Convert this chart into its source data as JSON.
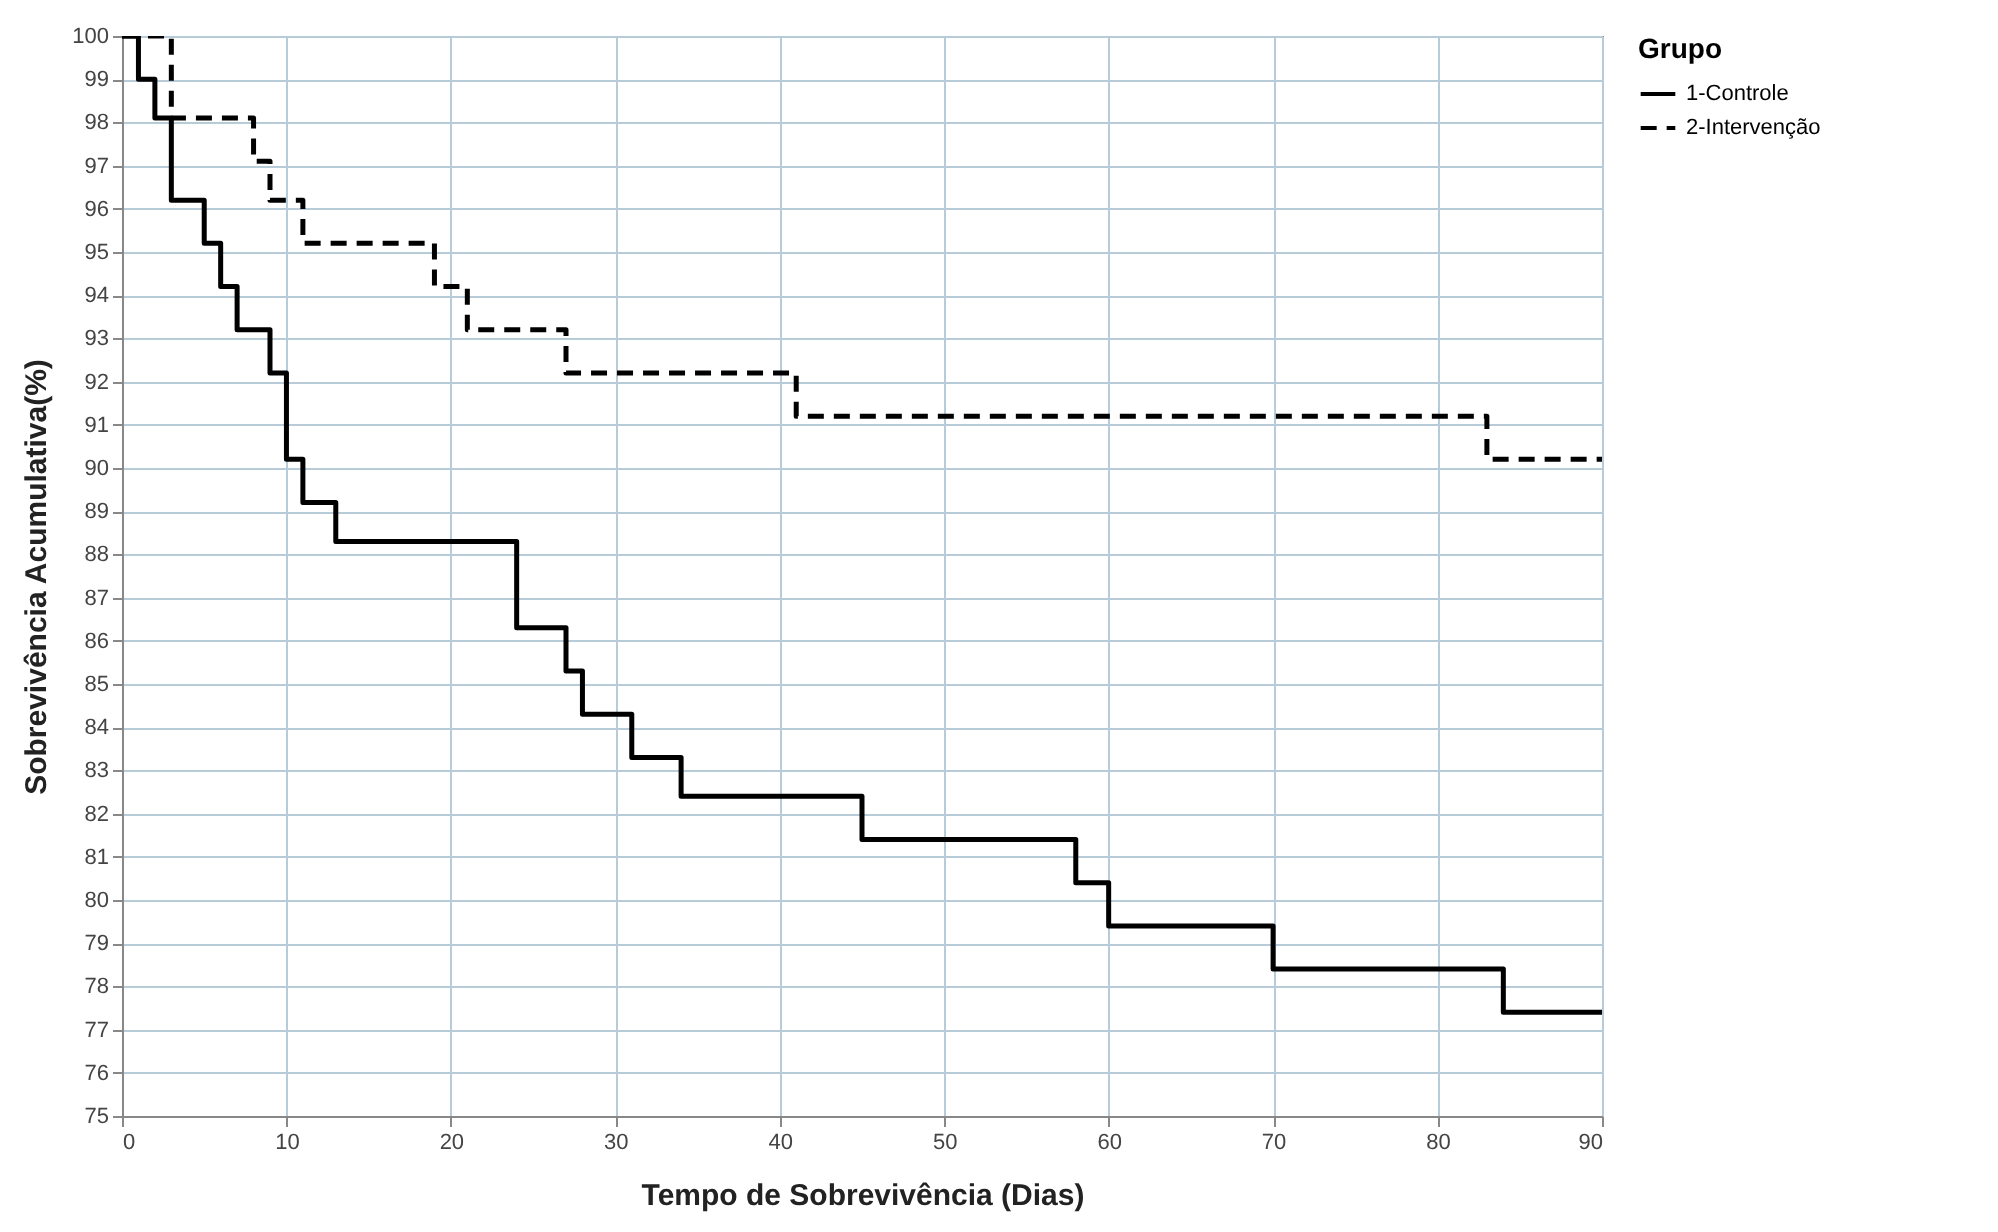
{
  "chart_data": {
    "type": "step",
    "xlabel": "Tempo de Sobrevivência (Dias)",
    "ylabel": "Sobrevivência Acumulativa(%)",
    "legend_title": "Grupo",
    "legend": "right",
    "grid": true,
    "xlim": [
      0,
      90
    ],
    "xticks": [
      0,
      10,
      20,
      30,
      40,
      50,
      60,
      70,
      80,
      90
    ],
    "ylim": [
      75,
      100
    ],
    "yticks": [
      75,
      76,
      77,
      78,
      79,
      80,
      81,
      82,
      83,
      84,
      85,
      86,
      87,
      88,
      89,
      90,
      91,
      92,
      93,
      94,
      95,
      96,
      97,
      98,
      99,
      100
    ],
    "series": [
      {
        "name": "1-Controle",
        "color": "#000000",
        "line_style": "solid",
        "x": [
          0,
          1,
          2,
          3,
          5,
          6,
          7,
          9,
          10,
          11,
          13,
          24,
          27,
          28,
          31,
          34,
          45,
          58,
          60,
          70,
          84,
          90
        ],
        "values": [
          100,
          99,
          98.1,
          96.2,
          95.2,
          94.2,
          93.2,
          92.2,
          90.2,
          89.2,
          88.3,
          86.3,
          85.3,
          84.3,
          83.3,
          82.4,
          81.4,
          80.4,
          79.4,
          78.4,
          77.4,
          77.4
        ]
      },
      {
        "name": "2-Intervenção",
        "color": "#000000",
        "line_style": "dashed",
        "x": [
          0,
          3,
          8,
          9,
          11,
          19,
          21,
          27,
          41,
          83,
          90
        ],
        "values": [
          100,
          98.1,
          97.1,
          96.2,
          95.2,
          94.2,
          93.2,
          92.2,
          91.2,
          90.2,
          90.2
        ]
      }
    ]
  }
}
